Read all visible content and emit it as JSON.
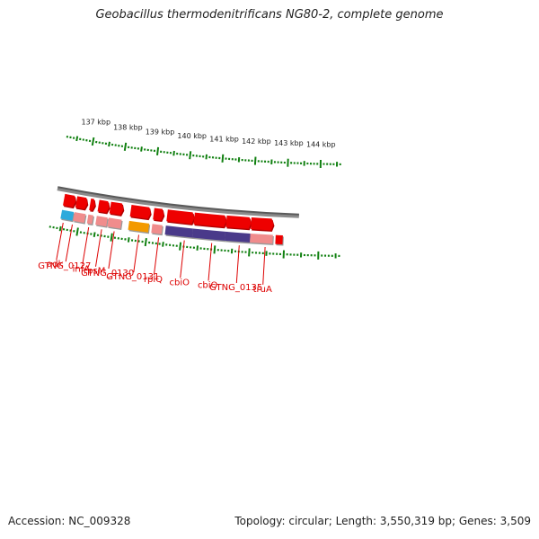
{
  "title": "Geobacillus thermodenitrificans NG80-2, complete genome",
  "footer": {
    "accession": "Accession: NC_009328",
    "summary": "Topology: circular; Length: 3,550,319 bp; Genes: 3,509"
  },
  "colors": {
    "label": "#dd0000",
    "cds": "#ee0000",
    "gene_default": "#f08c8c",
    "gene_adk": "#2eaadc",
    "gene_orange": "#f39a00",
    "gene_purple": "#4a3a8a",
    "backbone": "#8a8a8a",
    "tick": "#108010"
  },
  "scale_labels": [
    {
      "kbp": 137,
      "text": "137 kbp"
    },
    {
      "kbp": 138,
      "text": "138 kbp"
    },
    {
      "kbp": 139,
      "text": "139 kbp"
    },
    {
      "kbp": 140,
      "text": "140 kbp"
    },
    {
      "kbp": 141,
      "text": "141 kbp"
    },
    {
      "kbp": 142,
      "text": "142 kbp"
    },
    {
      "kbp": 143,
      "text": "143 kbp"
    },
    {
      "kbp": 144,
      "text": "144 kbp"
    }
  ],
  "gene_labels": [
    {
      "text": "adk",
      "kbp": 136.55
    },
    {
      "text": "GTNG_0127",
      "kbp": 136.82
    },
    {
      "text": "infA",
      "kbp": 137.3
    },
    {
      "text": "rpsM",
      "kbp": 137.68
    },
    {
      "text": "GTNG_0130",
      "kbp": 138.05
    },
    {
      "text": "GTNG_0131",
      "kbp": 138.77
    },
    {
      "text": "rplQ",
      "kbp": 139.35
    },
    {
      "text": "cbiO",
      "kbp": 140.1
    },
    {
      "text": "cbiO",
      "kbp": 140.9
    },
    {
      "text": "GTNG_0135",
      "kbp": 141.7
    },
    {
      "text": "truA",
      "kbp": 142.45
    }
  ],
  "genes": [
    {
      "name": "adk",
      "start": 136.45,
      "end": 136.8,
      "color": "#2eaadc"
    },
    {
      "name": "GTNG_0127",
      "start": 136.82,
      "end": 137.15,
      "color": "#f08c8c"
    },
    {
      "name": "infA",
      "start": 137.23,
      "end": 137.38,
      "color": "#f08c8c"
    },
    {
      "name": "rpsM",
      "start": 137.48,
      "end": 137.8,
      "color": "#f08c8c"
    },
    {
      "name": "GTNG_0130",
      "start": 137.83,
      "end": 138.22,
      "color": "#f08c8c"
    },
    {
      "name": "GTNG_0131",
      "start": 138.44,
      "end": 139.03,
      "color": "#f39a00"
    },
    {
      "name": "rplQ",
      "start": 139.12,
      "end": 139.42,
      "color": "#f08c8c"
    },
    {
      "name": "cbiO",
      "start": 139.52,
      "end": 140.32,
      "color": "#4a3a8a"
    },
    {
      "name": "cbiO",
      "start": 140.32,
      "end": 141.27,
      "color": "#4a3a8a"
    },
    {
      "name": "GTNG_0135",
      "start": 141.27,
      "end": 142.0,
      "color": "#4a3a8a"
    },
    {
      "name": "truA",
      "start": 142.0,
      "end": 142.66,
      "color": "#f08c8c"
    },
    {
      "name": "next-gene",
      "start": 142.74,
      "end": 142.95,
      "color": "#ee0000"
    }
  ],
  "cds": [
    {
      "start": 136.45,
      "end": 136.8
    },
    {
      "start": 136.82,
      "end": 137.15
    },
    {
      "start": 137.23,
      "end": 137.38
    },
    {
      "start": 137.48,
      "end": 137.8
    },
    {
      "start": 137.83,
      "end": 138.22
    },
    {
      "start": 138.44,
      "end": 139.03
    },
    {
      "start": 139.12,
      "end": 139.42
    },
    {
      "start": 139.52,
      "end": 140.32
    },
    {
      "start": 140.32,
      "end": 141.27
    },
    {
      "start": 141.27,
      "end": 142.0
    },
    {
      "start": 142.0,
      "end": 142.66
    }
  ]
}
